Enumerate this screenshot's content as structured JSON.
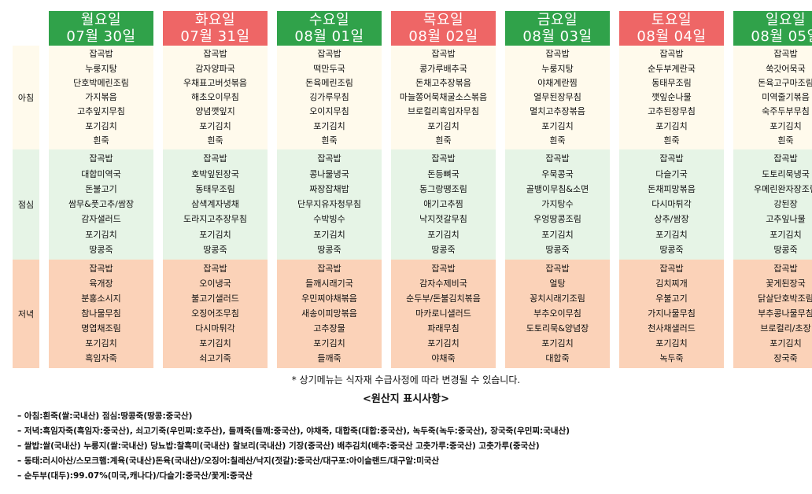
{
  "days": [
    {
      "day": "월요일",
      "date": "07월 30일",
      "holiday": false
    },
    {
      "day": "화요일",
      "date": "07월 31일",
      "holiday": true
    },
    {
      "day": "수요일",
      "date": "08월 01일",
      "holiday": false
    },
    {
      "day": "목요일",
      "date": "08월 02일",
      "holiday": true
    },
    {
      "day": "금요일",
      "date": "08월 03일",
      "holiday": false
    },
    {
      "day": "토요일",
      "date": "08월 04일",
      "holiday": true
    },
    {
      "day": "일요일",
      "date": "08월 05일",
      "holiday": false
    }
  ],
  "colors": {
    "weekday_header": "#30a24a",
    "holiday_header": "#ee6666",
    "breakfast_bg": "#fffaec",
    "lunch_bg": "#e6f4e6",
    "dinner_bg": "#fbd2b8"
  },
  "meals": [
    {
      "label": "아침",
      "menus": [
        [
          "잡곡밥",
          "누룽지탕",
          "단호박메린조림",
          "가지볶음",
          "고추잎지무침",
          "포기김치",
          "흰죽"
        ],
        [
          "잡곡밥",
          "감자양파국",
          "우채표고버섯볶음",
          "해초오이무침",
          "양념깻잎지",
          "포기김치",
          "흰죽"
        ],
        [
          "잡곡밥",
          "떡만두국",
          "돈육메린조림",
          "깅가루무침",
          "오이지무침",
          "포기김치",
          "흰죽"
        ],
        [
          "잡곡밥",
          "콩가루배추국",
          "돈채고추장볶음",
          "마늘쫑어묵채굴소스볶음",
          "브로컬리흑임자무침",
          "포기김치",
          "흰죽"
        ],
        [
          "잡곡밥",
          "누룽지탕",
          "야채계란찜",
          "열무된장무침",
          "멸치고추장볶음",
          "포기김치",
          "흰죽"
        ],
        [
          "잡곡밥",
          "순두부계란국",
          "동태무조림",
          "깻잎순나물",
          "고추된장무침",
          "포기김치",
          "흰죽"
        ],
        [
          "잡곡밥",
          "쑥갓어묵국",
          "돈육고구마조림",
          "미역줄기볶음",
          "숙주두부무침",
          "포기김치",
          "흰죽"
        ]
      ]
    },
    {
      "label": "점심",
      "menus": [
        [
          "잡곡밥",
          "대합미역국",
          "돈불고기",
          "쌈무&풋고추/쌈장",
          "감자샐러드",
          "포기김치",
          "땅콩죽"
        ],
        [
          "잡곡밥",
          "호박잎된장국",
          "동태무조림",
          "삼색계자냉채",
          "도라지고추장무침",
          "포기김치",
          "땅콩죽"
        ],
        [
          "잡곡밥",
          "콩나물냉국",
          "짜장잡채밥",
          "단무지유자청무침",
          "수박빙수",
          "포기김치",
          "땅콩죽"
        ],
        [
          "잡곡밥",
          "돈등뼈국",
          "동그랑땡조림",
          "애기고추찜",
          "낙지젓갈무침",
          "포기김치",
          "땅콩죽"
        ],
        [
          "잡곡밥",
          "우묵콩국",
          "골뱅이무침&소면",
          "가지탕수",
          "우엉땅콩조림",
          "포기김치",
          "땅콩죽"
        ],
        [
          "잡곡밥",
          "다슬기국",
          "돈채피망볶음",
          "다시마튀각",
          "상추/쌈장",
          "포기김치",
          "땅콩죽"
        ],
        [
          "잡곡밥",
          "도토리묵냉국",
          "우메린완자장조림",
          "강된장",
          "고추잎나물",
          "포기김치",
          "땅콩죽"
        ]
      ]
    },
    {
      "label": "저녁",
      "menus": [
        [
          "잡곡밥",
          "육개장",
          "분홍소시지",
          "참나물무침",
          "명엽채조림",
          "포기김치",
          "흑임자죽"
        ],
        [
          "잡곡밥",
          "오이냉국",
          "불고기샐러드",
          "오징어조무침",
          "다시마튀각",
          "포기김치",
          "쇠고기죽"
        ],
        [
          "잡곡밥",
          "들깨시래기국",
          "우민찌야채볶음",
          "새송이피망볶음",
          "고추장물",
          "포기김치",
          "들깨죽"
        ],
        [
          "잡곡밥",
          "감자수제비국",
          "순두부/돈불김치볶음",
          "마카로니샐러드",
          "파래무침",
          "포기김치",
          "야채죽"
        ],
        [
          "잡곡밥",
          "얼탕",
          "꽁치시래기조림",
          "부추오이무침",
          "도토리묵&양념장",
          "포기김치",
          "대합죽"
        ],
        [
          "잡곡밥",
          "김치찌개",
          "우불고기",
          "가지나물무침",
          "천사채샐러드",
          "포기김치",
          "녹두죽"
        ],
        [
          "잡곡밥",
          "꽃게된장국",
          "닭살단호박조림",
          "부추콩나물무침",
          "브로컬리/초장",
          "포기김치",
          "장국죽"
        ]
      ]
    }
  ],
  "notice": "* 상기메뉴는 식자재 수급사정에 따라 변경될 수 있습니다.",
  "origin": {
    "title": "<원산지 표시사항>",
    "items": [
      "– 아침:흰죽(쌀:국내산) 점심:땅콩죽(땅콩:중국산)",
      "– 저녁:흑임자죽(흑임자:중국산), 쇠고기죽(우민찌:호주산), 들깨죽(들깨:중국산), 야채죽, 대합죽(대합:중국산), 녹두죽(녹두:중국산), 장국죽(우민찌:국내산)",
      "– 쌀밥:쌀(국내산) 누룽지(쌀:국내산) 당뇨밥:찰흑미(국내산) 찰보리(국내산) 기장(중국산) 배추김치(배추:중국산 고춧가루:중국산) 고춧가루(중국산)",
      "– 동태:러시아산/스모크햄:계육(국내산)돈육(국내산)/오징어:칠레산/낙지(젓갈):중국산/대구포:아이슬랜드/대구알:미국산",
      "– 순두부(대두):99.07%(미국,캐나다)/다슬기:중국산/꽃게:중국산"
    ]
  }
}
